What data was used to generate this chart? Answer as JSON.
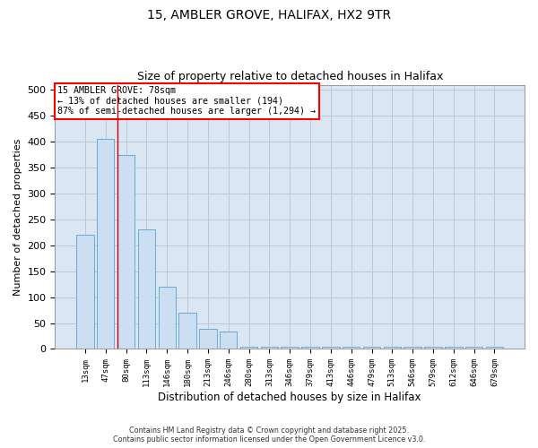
{
  "title_line1": "15, AMBLER GROVE, HALIFAX, HX2 9TR",
  "title_line2": "Size of property relative to detached houses in Halifax",
  "xlabel": "Distribution of detached houses by size in Halifax",
  "ylabel": "Number of detached properties",
  "categories": [
    "13sqm",
    "47sqm",
    "80sqm",
    "113sqm",
    "146sqm",
    "180sqm",
    "213sqm",
    "246sqm",
    "280sqm",
    "313sqm",
    "346sqm",
    "379sqm",
    "413sqm",
    "446sqm",
    "479sqm",
    "513sqm",
    "546sqm",
    "579sqm",
    "612sqm",
    "646sqm",
    "679sqm"
  ],
  "values": [
    220,
    405,
    375,
    230,
    120,
    70,
    38,
    33,
    5,
    5,
    5,
    5,
    5,
    5,
    5,
    5,
    5,
    5,
    5,
    5,
    5
  ],
  "bar_color": "#ccdff2",
  "bar_edge_color": "#6aaad4",
  "grid_color": "#b8c8dc",
  "background_color": "#dae6f2",
  "vline_color": "#cc0000",
  "annotation_title": "15 AMBLER GROVE: 78sqm",
  "annotation_line1": "← 13% of detached houses are smaller (194)",
  "annotation_line2": "87% of semi-detached houses are larger (1,294) →",
  "ylim": [
    0,
    510
  ],
  "yticks": [
    0,
    50,
    100,
    150,
    200,
    250,
    300,
    350,
    400,
    450,
    500
  ],
  "footer_line1": "Contains HM Land Registry data © Crown copyright and database right 2025.",
  "footer_line2": "Contains public sector information licensed under the Open Government Licence v3.0."
}
